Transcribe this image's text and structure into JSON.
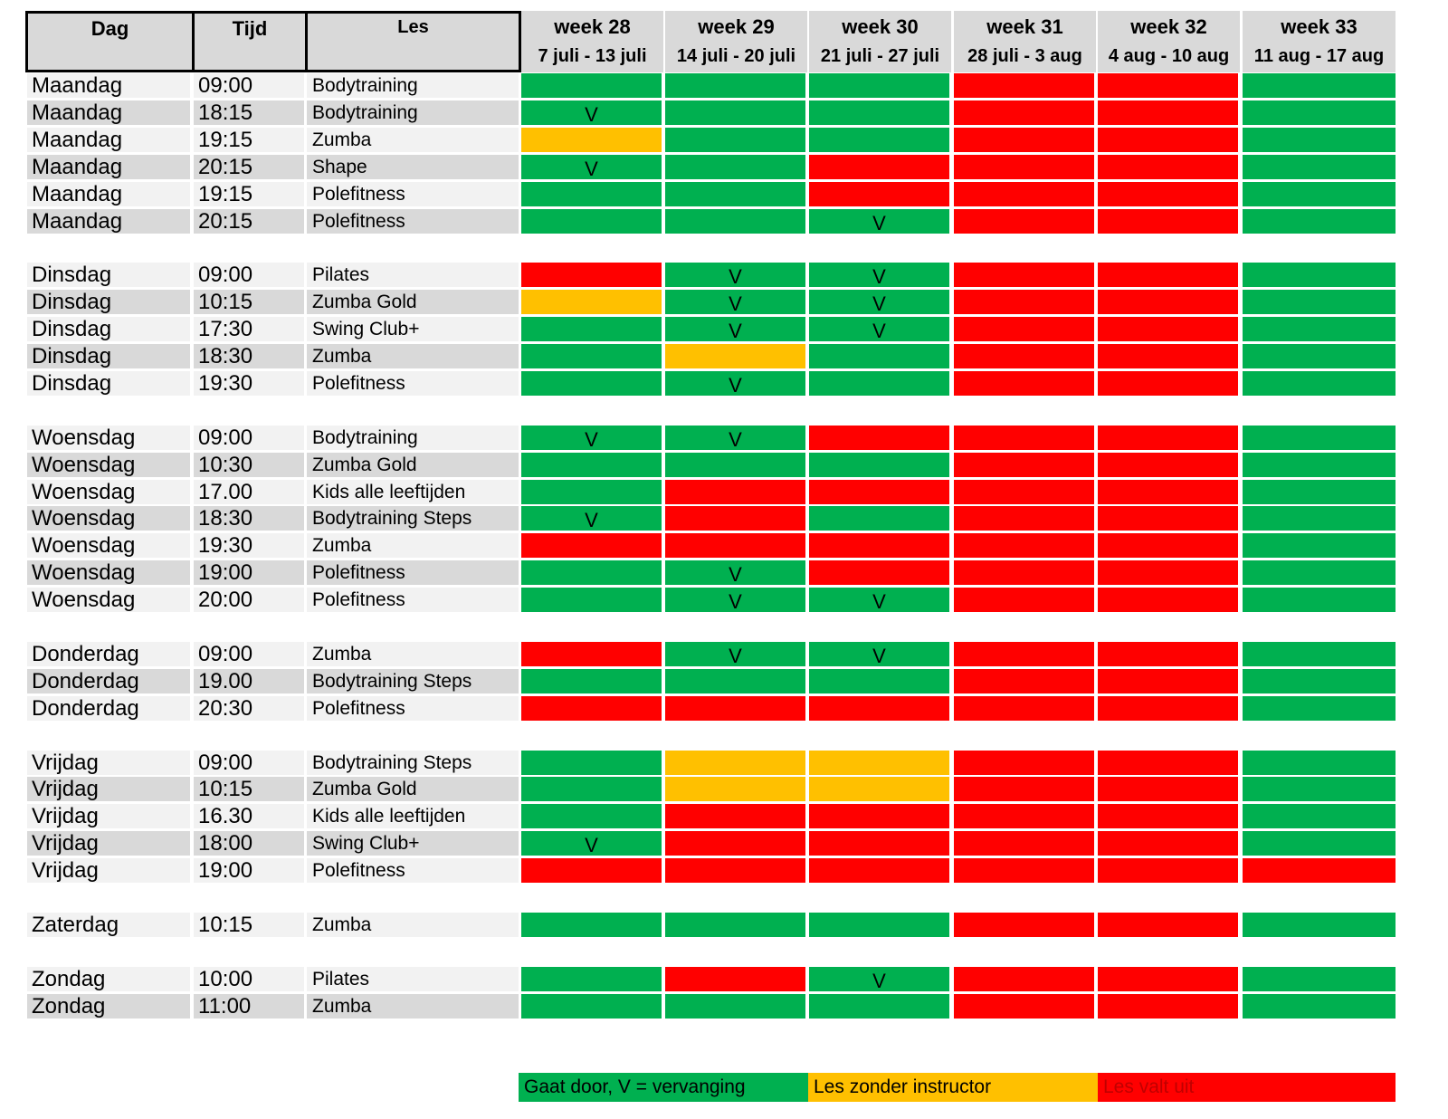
{
  "header": {
    "dag": "Dag",
    "tijd": "Tijd",
    "les": "Les",
    "weeks": [
      {
        "week": "week 28",
        "range": "7 juli - 13 juli"
      },
      {
        "week": "week 29",
        "range": "14 juli - 20 juli"
      },
      {
        "week": "week 30",
        "range": "21 juli - 27 juli"
      },
      {
        "week": "week 31",
        "range": "28 juli - 3 aug"
      },
      {
        "week": "week 32",
        "range": "4 aug - 10 aug"
      },
      {
        "week": "week 33",
        "range": "11 aug - 17 aug"
      }
    ]
  },
  "status_colors": {
    "G": "#00b050",
    "Y": "#ffc000",
    "R": "#ff0000"
  },
  "row_shades": [
    "#f2f2f2",
    "#d9d9d9"
  ],
  "groups": [
    {
      "rows": [
        {
          "day": "Maandag",
          "time": "09:00",
          "les": "Bodytraining",
          "status": [
            "G",
            "G",
            "G",
            "R",
            "R",
            "G"
          ],
          "marks": [
            "",
            "",
            "",
            "",
            "",
            ""
          ]
        },
        {
          "day": "Maandag",
          "time": "18:15",
          "les": "Bodytraining",
          "status": [
            "G",
            "G",
            "G",
            "R",
            "R",
            "G"
          ],
          "marks": [
            "V",
            "",
            "",
            "",
            "",
            ""
          ]
        },
        {
          "day": "Maandag",
          "time": "19:15",
          "les": "Zumba",
          "status": [
            "Y",
            "G",
            "G",
            "R",
            "R",
            "G"
          ],
          "marks": [
            "",
            "",
            "",
            "",
            "",
            ""
          ]
        },
        {
          "day": "Maandag",
          "time": "20:15",
          "les": "Shape",
          "status": [
            "G",
            "G",
            "R",
            "R",
            "R",
            "G"
          ],
          "marks": [
            "V",
            "",
            "",
            "",
            "",
            ""
          ]
        },
        {
          "day": "Maandag",
          "time": "19:15",
          "les": "Polefitness",
          "status": [
            "G",
            "G",
            "R",
            "R",
            "R",
            "G"
          ],
          "marks": [
            "",
            "",
            "",
            "",
            "",
            ""
          ]
        },
        {
          "day": "Maandag",
          "time": "20:15",
          "les": "Polefitness",
          "status": [
            "G",
            "G",
            "G",
            "R",
            "R",
            "G"
          ],
          "marks": [
            "",
            "",
            "V",
            "",
            "",
            ""
          ]
        }
      ]
    },
    {
      "rows": [
        {
          "day": "Dinsdag",
          "time": "09:00",
          "les": "Pilates",
          "status": [
            "R",
            "G",
            "G",
            "R",
            "R",
            "G"
          ],
          "marks": [
            "",
            "V",
            "V",
            "",
            "",
            ""
          ]
        },
        {
          "day": "Dinsdag",
          "time": "10:15",
          "les": "Zumba Gold",
          "status": [
            "Y",
            "G",
            "G",
            "R",
            "R",
            "G"
          ],
          "marks": [
            "",
            "V",
            "V",
            "",
            "",
            ""
          ]
        },
        {
          "day": "Dinsdag",
          "time": "17:30",
          "les": "Swing Club+",
          "status": [
            "G",
            "G",
            "G",
            "R",
            "R",
            "G"
          ],
          "marks": [
            "",
            "V",
            "V",
            "",
            "",
            ""
          ]
        },
        {
          "day": "Dinsdag",
          "time": "18:30",
          "les": "Zumba",
          "status": [
            "G",
            "Y",
            "G",
            "R",
            "R",
            "G"
          ],
          "marks": [
            "",
            "",
            "",
            "",
            "",
            ""
          ]
        },
        {
          "day": "Dinsdag",
          "time": "19:30",
          "les": "Polefitness",
          "status": [
            "G",
            "G",
            "G",
            "R",
            "R",
            "G"
          ],
          "marks": [
            "",
            "V",
            "",
            "",
            "",
            ""
          ]
        }
      ]
    },
    {
      "rows": [
        {
          "day": "Woensdag",
          "time": "09:00",
          "les": "Bodytraining",
          "status": [
            "G",
            "G",
            "R",
            "R",
            "R",
            "G"
          ],
          "marks": [
            "V",
            "V",
            "",
            "",
            "",
            ""
          ]
        },
        {
          "day": "Woensdag",
          "time": "10:30",
          "les": "Zumba Gold",
          "status": [
            "G",
            "G",
            "G",
            "R",
            "R",
            "G"
          ],
          "marks": [
            "",
            "",
            "",
            "",
            "",
            ""
          ]
        },
        {
          "day": "Woensdag",
          "time": "17.00",
          "les": "Kids alle leeftijden",
          "status": [
            "G",
            "R",
            "R",
            "R",
            "R",
            "G"
          ],
          "marks": [
            "",
            "",
            "",
            "",
            "",
            ""
          ]
        },
        {
          "day": "Woensdag",
          "time": "18:30",
          "les": "Bodytraining Steps",
          "status": [
            "G",
            "R",
            "G",
            "R",
            "R",
            "G"
          ],
          "marks": [
            "V",
            "",
            "",
            "",
            "",
            ""
          ]
        },
        {
          "day": "Woensdag",
          "time": "19:30",
          "les": "Zumba",
          "status": [
            "R",
            "R",
            "R",
            "R",
            "R",
            "G"
          ],
          "marks": [
            "",
            "",
            "",
            "",
            "",
            ""
          ]
        },
        {
          "day": "Woensdag",
          "time": "19:00",
          "les": "Polefitness",
          "status": [
            "G",
            "G",
            "R",
            "R",
            "R",
            "G"
          ],
          "marks": [
            "",
            "V",
            "",
            "",
            "",
            ""
          ]
        },
        {
          "day": "Woensdag",
          "time": "20:00",
          "les": "Polefitness",
          "status": [
            "G",
            "G",
            "G",
            "R",
            "R",
            "G"
          ],
          "marks": [
            "",
            "V",
            "V",
            "",
            "",
            ""
          ]
        }
      ]
    },
    {
      "rows": [
        {
          "day": "Donderdag",
          "time": "09:00",
          "les": "Zumba",
          "status": [
            "R",
            "G",
            "G",
            "R",
            "R",
            "G"
          ],
          "marks": [
            "",
            "V",
            "V",
            "",
            "",
            ""
          ]
        },
        {
          "day": "Donderdag",
          "time": "19.00",
          "les": "Bodytraining Steps",
          "status": [
            "G",
            "G",
            "G",
            "R",
            "R",
            "G"
          ],
          "marks": [
            "",
            "",
            "",
            "",
            "",
            ""
          ]
        },
        {
          "day": "Donderdag",
          "time": "20:30",
          "les": "Polefitness",
          "status": [
            "R",
            "R",
            "R",
            "R",
            "R",
            "G"
          ],
          "marks": [
            "",
            "",
            "",
            "",
            "",
            ""
          ]
        }
      ]
    },
    {
      "rows": [
        {
          "day": "Vrijdag",
          "time": "09:00",
          "les": "Bodytraining Steps",
          "status": [
            "G",
            "Y",
            "Y",
            "R",
            "R",
            "G"
          ],
          "marks": [
            "",
            "",
            "",
            "",
            "",
            ""
          ]
        },
        {
          "day": "Vrijdag",
          "time": "10:15",
          "les": "Zumba Gold",
          "status": [
            "G",
            "Y",
            "Y",
            "R",
            "R",
            "G"
          ],
          "marks": [
            "",
            "",
            "",
            "",
            "",
            ""
          ]
        },
        {
          "day": "Vrijdag",
          "time": "16.30",
          "les": "Kids alle leeftijden",
          "status": [
            "G",
            "R",
            "R",
            "R",
            "R",
            "G"
          ],
          "marks": [
            "",
            "",
            "",
            "",
            "",
            ""
          ]
        },
        {
          "day": "Vrijdag",
          "time": "18:00",
          "les": "Swing Club+",
          "status": [
            "G",
            "R",
            "R",
            "R",
            "R",
            "G"
          ],
          "marks": [
            "V",
            "",
            "",
            "",
            "",
            ""
          ]
        },
        {
          "day": "Vrijdag",
          "time": "19:00",
          "les": "Polefitness",
          "status": [
            "R",
            "R",
            "R",
            "R",
            "R",
            "R"
          ],
          "marks": [
            "",
            "",
            "",
            "",
            "",
            ""
          ]
        }
      ]
    },
    {
      "rows": [
        {
          "day": "Zaterdag",
          "time": "10:15",
          "les": "Zumba",
          "status": [
            "G",
            "G",
            "G",
            "R",
            "R",
            "G"
          ],
          "marks": [
            "",
            "",
            "",
            "",
            "",
            ""
          ]
        }
      ]
    },
    {
      "rows": [
        {
          "day": "Zondag",
          "time": "10:00",
          "les": "Pilates",
          "status": [
            "G",
            "R",
            "G",
            "R",
            "R",
            "G"
          ],
          "marks": [
            "",
            "",
            "V",
            "",
            "",
            ""
          ]
        },
        {
          "day": "Zondag",
          "time": "11:00",
          "les": "Zumba",
          "status": [
            "G",
            "G",
            "G",
            "R",
            "R",
            "G"
          ],
          "marks": [
            "",
            "",
            "",
            "",
            "",
            ""
          ]
        }
      ]
    }
  ],
  "legend": [
    {
      "status": "G",
      "text": "Gaat door, V = vervanging",
      "text_color": "#000000"
    },
    {
      "status": "Y",
      "text": "Les zonder instructor",
      "text_color": "#000000"
    },
    {
      "status": "R",
      "text": "Les valt uit",
      "text_color": "#c00000"
    }
  ]
}
